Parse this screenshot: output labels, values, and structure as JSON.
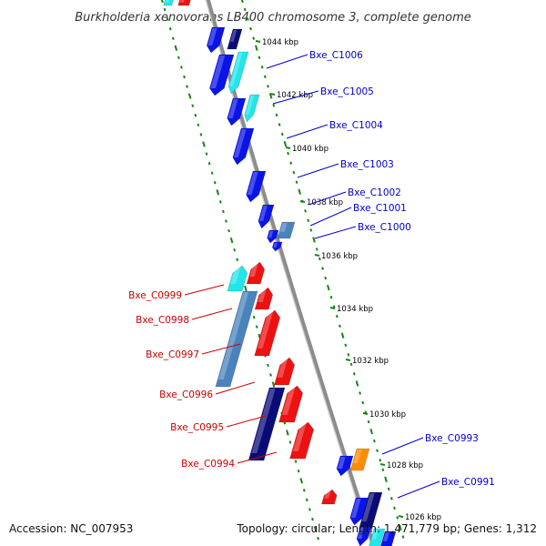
{
  "title": "Burkholderia xenovorans LB400 chromosome 3, complete genome",
  "footer": {
    "accession": "Accession: NC_007953",
    "topology": "Topology: circular; Length: 1,471,779 bp; Genes: 1,312"
  },
  "colors": {
    "backbone": "#8c8c8c",
    "ticks": "#118811",
    "gene_blue": "#0a14e8",
    "gene_cyan": "#22e6ea",
    "gene_steel": "#4a83bc",
    "gene_navy": "#0b0b78",
    "gene_red": "#ee1111",
    "gene_orange": "#ff8c00",
    "label_forward": "#0000cc",
    "label_reverse": "#cc0000"
  },
  "kbp_labels": [
    "1044 kbp",
    "1042 kbp",
    "1040 kbp",
    "1038 kbp",
    "1036 kbp",
    "1034 kbp",
    "1032 kbp",
    "1030 kbp",
    "1028 kbp",
    "1026 kbp"
  ],
  "forward_genes": [
    "Bxe_C1006",
    "Bxe_C1005",
    "Bxe_C1004",
    "Bxe_C1003",
    "Bxe_C1002",
    "Bxe_C1001",
    "Bxe_C1000",
    "Bxe_C0993",
    "Bxe_C0991"
  ],
  "reverse_genes": [
    "Bxe_C0999",
    "Bxe_C0998",
    "Bxe_C0997",
    "Bxe_C0996",
    "Bxe_C0995",
    "Bxe_C0994"
  ]
}
